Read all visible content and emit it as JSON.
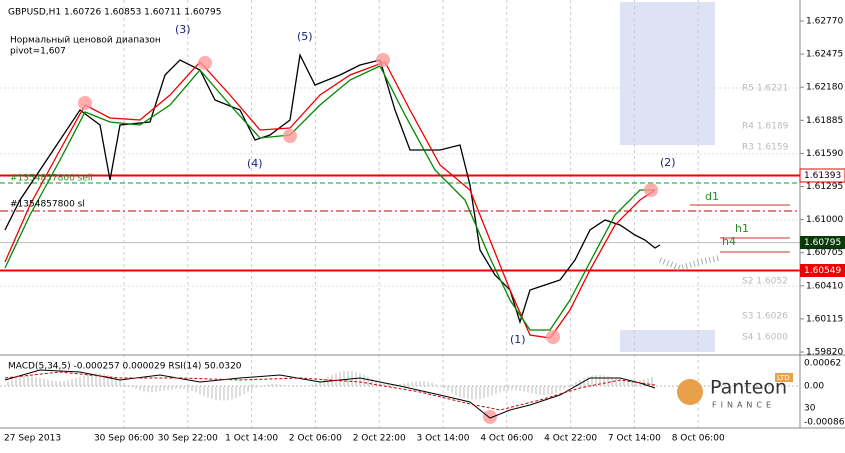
{
  "header": {
    "symbol_info": "GBPUSD,H1 1.60726 1.60853 1.60711 1.60795",
    "indicator": "Нормальный ценовой диапазон",
    "pivot": "pivot=1,607"
  },
  "waves": [
    "(3)",
    "(5)",
    "(4)",
    "(1)",
    "(2)"
  ],
  "timeframes": [
    "d1",
    "h1",
    "h4"
  ],
  "order_labels": [
    "#1354857800 sell",
    "#1354857800 sl"
  ],
  "pivot_levels": [
    "R5 1.6221",
    "R4 1.6189",
    "R3 1.6159",
    "S2 1.6052",
    "S3 1.6026",
    "S4 1.6000"
  ],
  "price_axis": [
    "1.62770",
    "1.62475",
    "1.62180",
    "1.61885",
    "1.61590",
    "1.61295",
    "1.61000",
    "1.60705",
    "1.60410",
    "1.60115",
    "1.59820"
  ],
  "price_markers": {
    "resistance": "1.61393",
    "current": "1.60795",
    "support": "1.60549"
  },
  "macd": {
    "label": "MACD(5,34,5) -0.000257 0.000029  RSI(14) 50.0320",
    "axis": [
      "0.00062",
      "0.00",
      "30",
      "-0.000865"
    ]
  },
  "time_axis": [
    "27 Sep 2013",
    "30 Sep 06:00",
    "30 Sep 22:00",
    "1 Oct 14:00",
    "2 Oct 06:00",
    "2 Oct 22:00",
    "3 Oct 14:00",
    "4 Oct 06:00",
    "4 Oct 22:00",
    "7 Oct 14:00",
    "8 Oct 06:00"
  ],
  "logo": {
    "name": "Panteon",
    "sub": "FINANCE",
    "badge": "LTD"
  }
}
